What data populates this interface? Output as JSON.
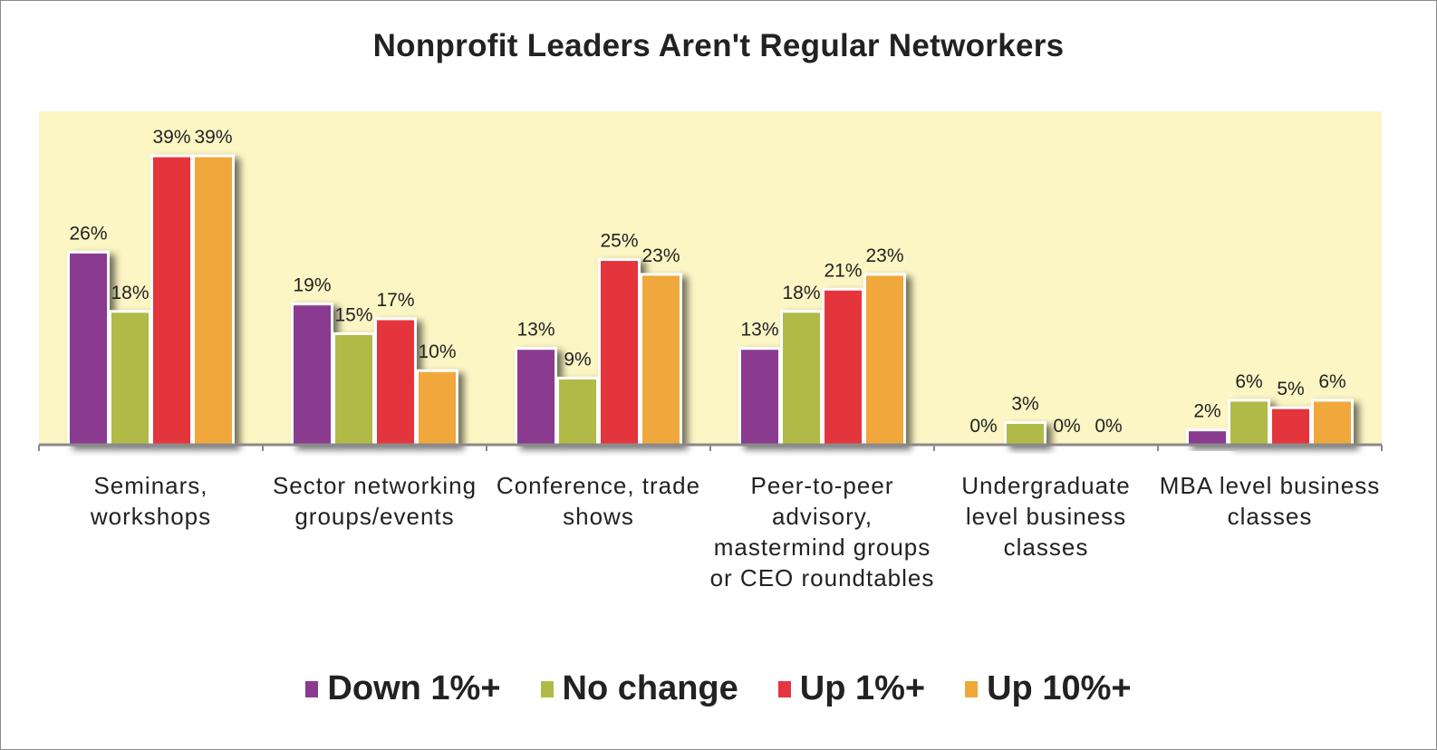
{
  "chart_data": {
    "type": "bar",
    "title": "Nonprofit Leaders Aren't Regular Networkers",
    "xlabel": "",
    "ylabel": "",
    "ylim": [
      0,
      45
    ],
    "grid": false,
    "legend_position": "bottom",
    "categories": [
      "Seminars, workshops",
      "Sector networking groups/events",
      "Conference, trade shows",
      "Peer-to-peer advisory, mastermind groups or CEO roundtables",
      "Undergraduate level business classes",
      "MBA level business classes"
    ],
    "series": [
      {
        "name": "Down 1%+",
        "color": "#8b3a8f",
        "values": [
          26,
          19,
          13,
          13,
          0,
          2
        ],
        "labels": [
          "26%",
          "19%",
          "13%",
          "13%",
          "0%",
          "2%"
        ]
      },
      {
        "name": "No change",
        "color": "#b0bb47",
        "values": [
          18,
          15,
          9,
          18,
          3,
          6
        ],
        "labels": [
          "18%",
          "15%",
          "9%",
          "18%",
          "3%",
          "6%"
        ]
      },
      {
        "name": "Up 1%+",
        "color": "#e4363e",
        "values": [
          39,
          17,
          25,
          21,
          0,
          5
        ],
        "labels": [
          "39%",
          "17%",
          "25%",
          "21%",
          "0%",
          "5%"
        ]
      },
      {
        "name": "Up 10%+",
        "color": "#f0a73a",
        "values": [
          39,
          10,
          23,
          23,
          0,
          6
        ],
        "labels": [
          "39%",
          "10%",
          "23%",
          "23%",
          "0%",
          "6%"
        ]
      }
    ]
  },
  "colors": {
    "plot_background": "#fcf5c4",
    "axis": "#8a8a8a"
  }
}
